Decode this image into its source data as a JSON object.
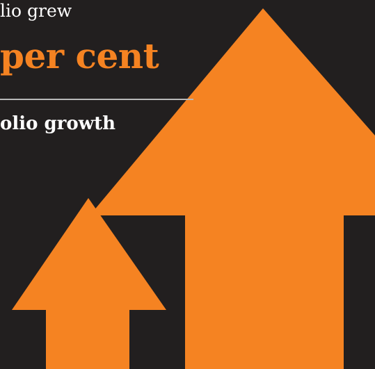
{
  "graphic": {
    "headline_top": "lio grew",
    "headline_main": "per cent",
    "subheading": "olio growth"
  },
  "colors": {
    "background": "#221f1f",
    "accent": "#f58322",
    "text": "#ffffff",
    "divider": "#b9b9b9"
  }
}
